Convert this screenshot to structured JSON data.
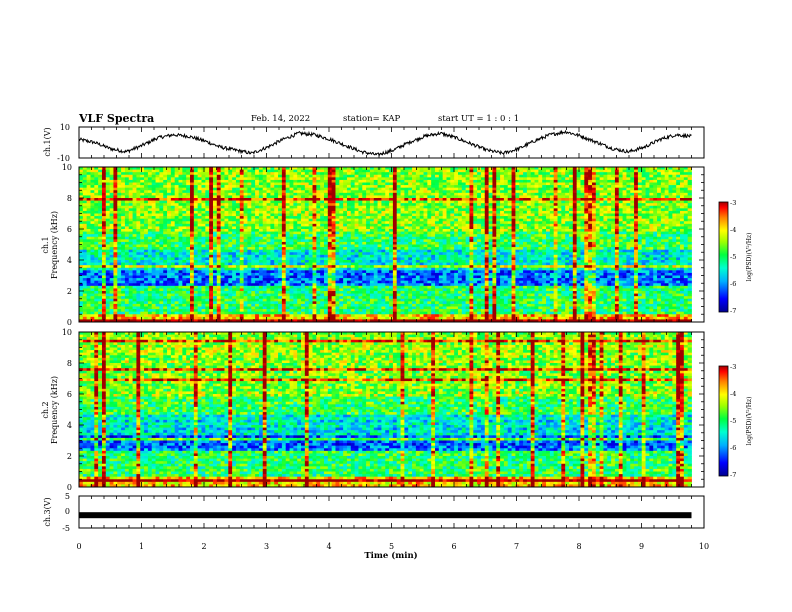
{
  "header": {
    "title": "VLF Spectra",
    "date": "Feb. 14, 2022",
    "station": "station= KAP",
    "start": "start  UT =  1 : 0  : 1"
  },
  "chart_data": [
    {
      "type": "line",
      "panel": "ch1-waveform",
      "ylabel": "ch.1(V)",
      "ylim": [
        -10,
        10
      ],
      "yticks": [
        "10",
        "-10"
      ],
      "xlim": [
        0,
        10
      ],
      "description_of_values": "oscillating waveform roughly between -8 and 8 V",
      "y_samples": [
        2,
        0,
        -4,
        -6,
        -2,
        3,
        5,
        4,
        1,
        -3,
        -5,
        -7,
        -3,
        2,
        6,
        5,
        2,
        -2,
        -6,
        -8,
        -5,
        0,
        4,
        6,
        3,
        -1,
        -5,
        -7,
        -4,
        1,
        5,
        7,
        4,
        0,
        -4,
        -6,
        -3,
        2,
        5,
        4
      ]
    },
    {
      "type": "heatmap",
      "panel": "ch1-spectrogram",
      "ylabel": "ch.1\nFrequency (kHz)",
      "ylabel_line1": "ch.1",
      "ylabel_line2": "Frequency (kHz)",
      "ylim": [
        0,
        10
      ],
      "yticks": [
        "0",
        "2",
        "4",
        "6",
        "8",
        "10"
      ],
      "xlim": [
        0,
        10
      ],
      "value_range": [
        -7,
        -3
      ],
      "colorbar_label": "log(PSD)(V²/Hz)",
      "colorbar_ticks": [
        "-3",
        "-4",
        "-5",
        "-6",
        "-7"
      ]
    },
    {
      "type": "heatmap",
      "panel": "ch2-spectrogram",
      "ylabel_line1": "ch.2",
      "ylabel_line2": "Frequency (kHz)",
      "ylim": [
        0,
        10
      ],
      "yticks": [
        "0",
        "2",
        "4",
        "6",
        "8",
        "10"
      ],
      "xlim": [
        0,
        10
      ],
      "value_range": [
        -7,
        -3
      ],
      "colorbar_label": "log(PSD)(V²/Hz)",
      "colorbar_ticks": [
        "-3",
        "-4",
        "-5",
        "-6",
        "-7"
      ]
    },
    {
      "type": "line",
      "panel": "ch3-waveform",
      "ylabel": "ch.3(V)",
      "ylim": [
        -5,
        5
      ],
      "yticks": [
        "5",
        "0",
        "-5"
      ],
      "xlim": [
        0,
        10
      ],
      "xlabel": "Time  (min)",
      "xticks": [
        "0",
        "1",
        "2",
        "3",
        "4",
        "5",
        "6",
        "7",
        "8",
        "9",
        "10"
      ],
      "constant_value": -1,
      "data_end_x": 9.8
    }
  ],
  "colors": {
    "background": "#ffffff",
    "axes": "#000000",
    "colormap": [
      "#000090",
      "#0000ff",
      "#0080ff",
      "#00d0ff",
      "#00ffc0",
      "#00ff40",
      "#80ff00",
      "#ffff00",
      "#ff8000",
      "#ff0000",
      "#b00000"
    ]
  }
}
